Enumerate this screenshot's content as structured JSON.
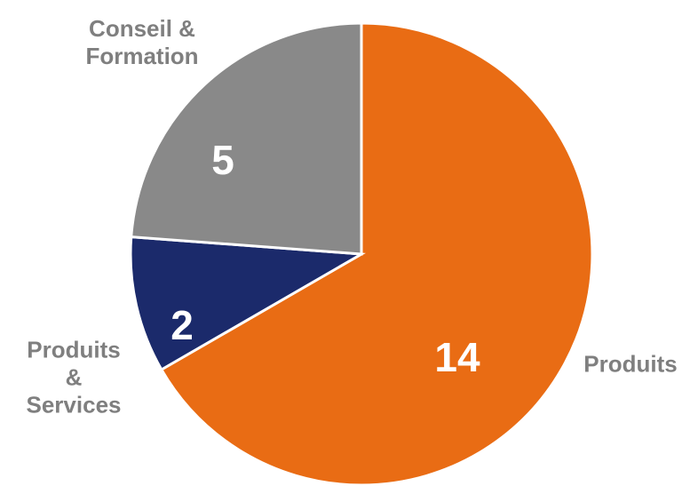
{
  "chart_data": {
    "type": "pie",
    "categories": [
      "Produits",
      "Produits\n&\nServices",
      "Conseil &\nFormation"
    ],
    "values": [
      14,
      2,
      5
    ],
    "colors": [
      "#E96C14",
      "#1B2A6B",
      "#898989"
    ]
  }
}
